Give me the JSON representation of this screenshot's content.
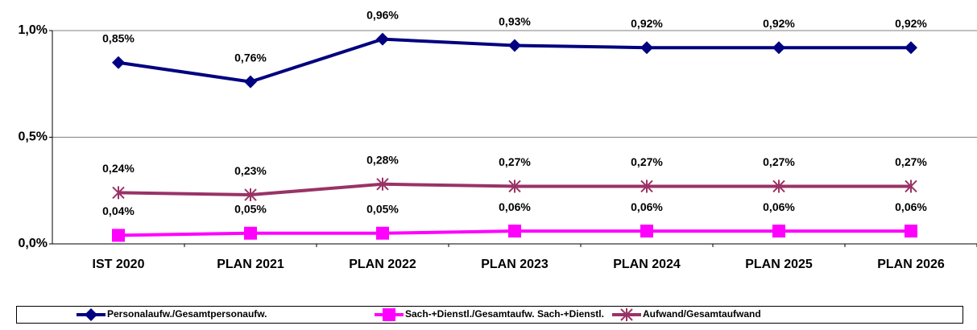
{
  "chart_data": {
    "type": "line",
    "categories": [
      "IST 2020",
      "PLAN 2021",
      "PLAN 2022",
      "PLAN 2023",
      "PLAN 2024",
      "PLAN 2025",
      "PLAN 2026"
    ],
    "series": [
      {
        "name": "Personalaufw./Gesamtpersonaufw.",
        "color": "#000080",
        "marker": "diamond",
        "values": [
          0.85,
          0.76,
          0.96,
          0.93,
          0.92,
          0.92,
          0.92
        ],
        "value_labels": [
          "0,85%",
          "0,76%",
          "0,96%",
          "0,93%",
          "0,92%",
          "0,92%",
          "0,92%"
        ]
      },
      {
        "name": "Sach-+Dienstl./Gesamtaufw. Sach-+Dienstl.",
        "color": "#ff00ff",
        "marker": "square",
        "values": [
          0.04,
          0.05,
          0.05,
          0.06,
          0.06,
          0.06,
          0.06
        ],
        "value_labels": [
          "0,04%",
          "0,05%",
          "0,05%",
          "0,06%",
          "0,06%",
          "0,06%",
          "0,06%"
        ]
      },
      {
        "name": "Aufwand/Gesamtaufwand",
        "color": "#993366",
        "marker": "asterisk",
        "values": [
          0.24,
          0.23,
          0.28,
          0.27,
          0.27,
          0.27,
          0.27
        ],
        "value_labels": [
          "0,24%",
          "0,23%",
          "0,28%",
          "0,27%",
          "0,27%",
          "0,27%",
          "0,27%"
        ]
      }
    ],
    "ylim": [
      0,
      1
    ],
    "yticks": [
      {
        "value": 0,
        "label": "0,0%"
      },
      {
        "value": 0.5,
        "label": "0,5%"
      },
      {
        "value": 1,
        "label": "1,0%"
      }
    ],
    "grid": true,
    "legend": "bottom"
  }
}
